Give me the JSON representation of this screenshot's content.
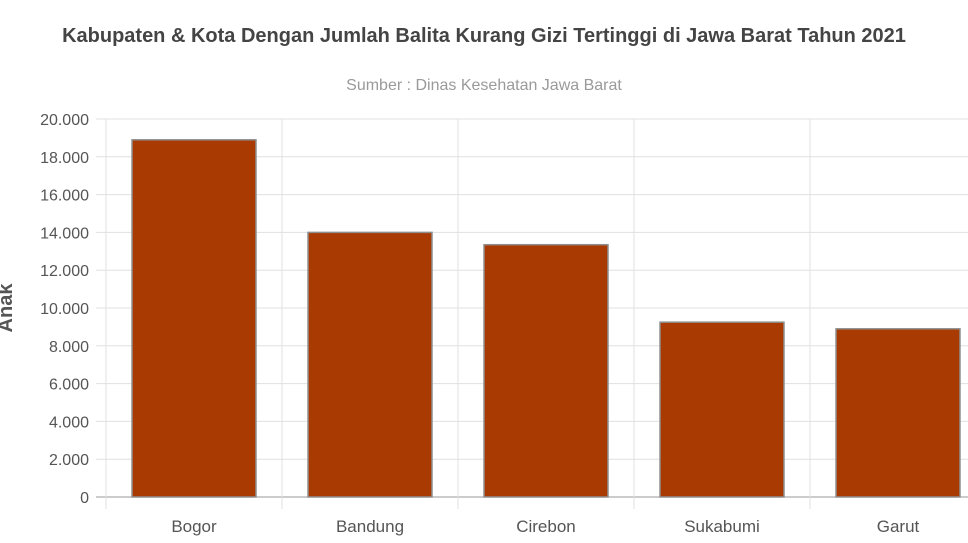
{
  "chart_data": {
    "type": "bar",
    "title": "Kabupaten & Kota  Dengan Jumlah Balita Kurang Gizi Tertinggi di Jawa Barat Tahun 2021",
    "subtitle": "Sumber : Dinas Kesehatan Jawa Barat",
    "xlabel": "",
    "ylabel": "Anak",
    "categories": [
      "Bogor",
      "Bandung",
      "Cirebon",
      "Sukabumi",
      "Garut"
    ],
    "values": [
      18900,
      14000,
      13350,
      9250,
      8900
    ],
    "ylim": [
      0,
      20000
    ],
    "yticks": [
      0,
      2000,
      4000,
      6000,
      8000,
      10000,
      12000,
      14000,
      16000,
      18000,
      20000
    ],
    "ytick_labels": [
      "0",
      "2.000",
      "4.000",
      "6.000",
      "8.000",
      "10.000",
      "12.000",
      "14.000",
      "16.000",
      "18.000",
      "20.000"
    ],
    "grid": true,
    "colors": {
      "bar": "#a93a02",
      "bar_border": "#8f8f8f",
      "grid": "#e0e0e0",
      "axis": "#999999"
    }
  }
}
